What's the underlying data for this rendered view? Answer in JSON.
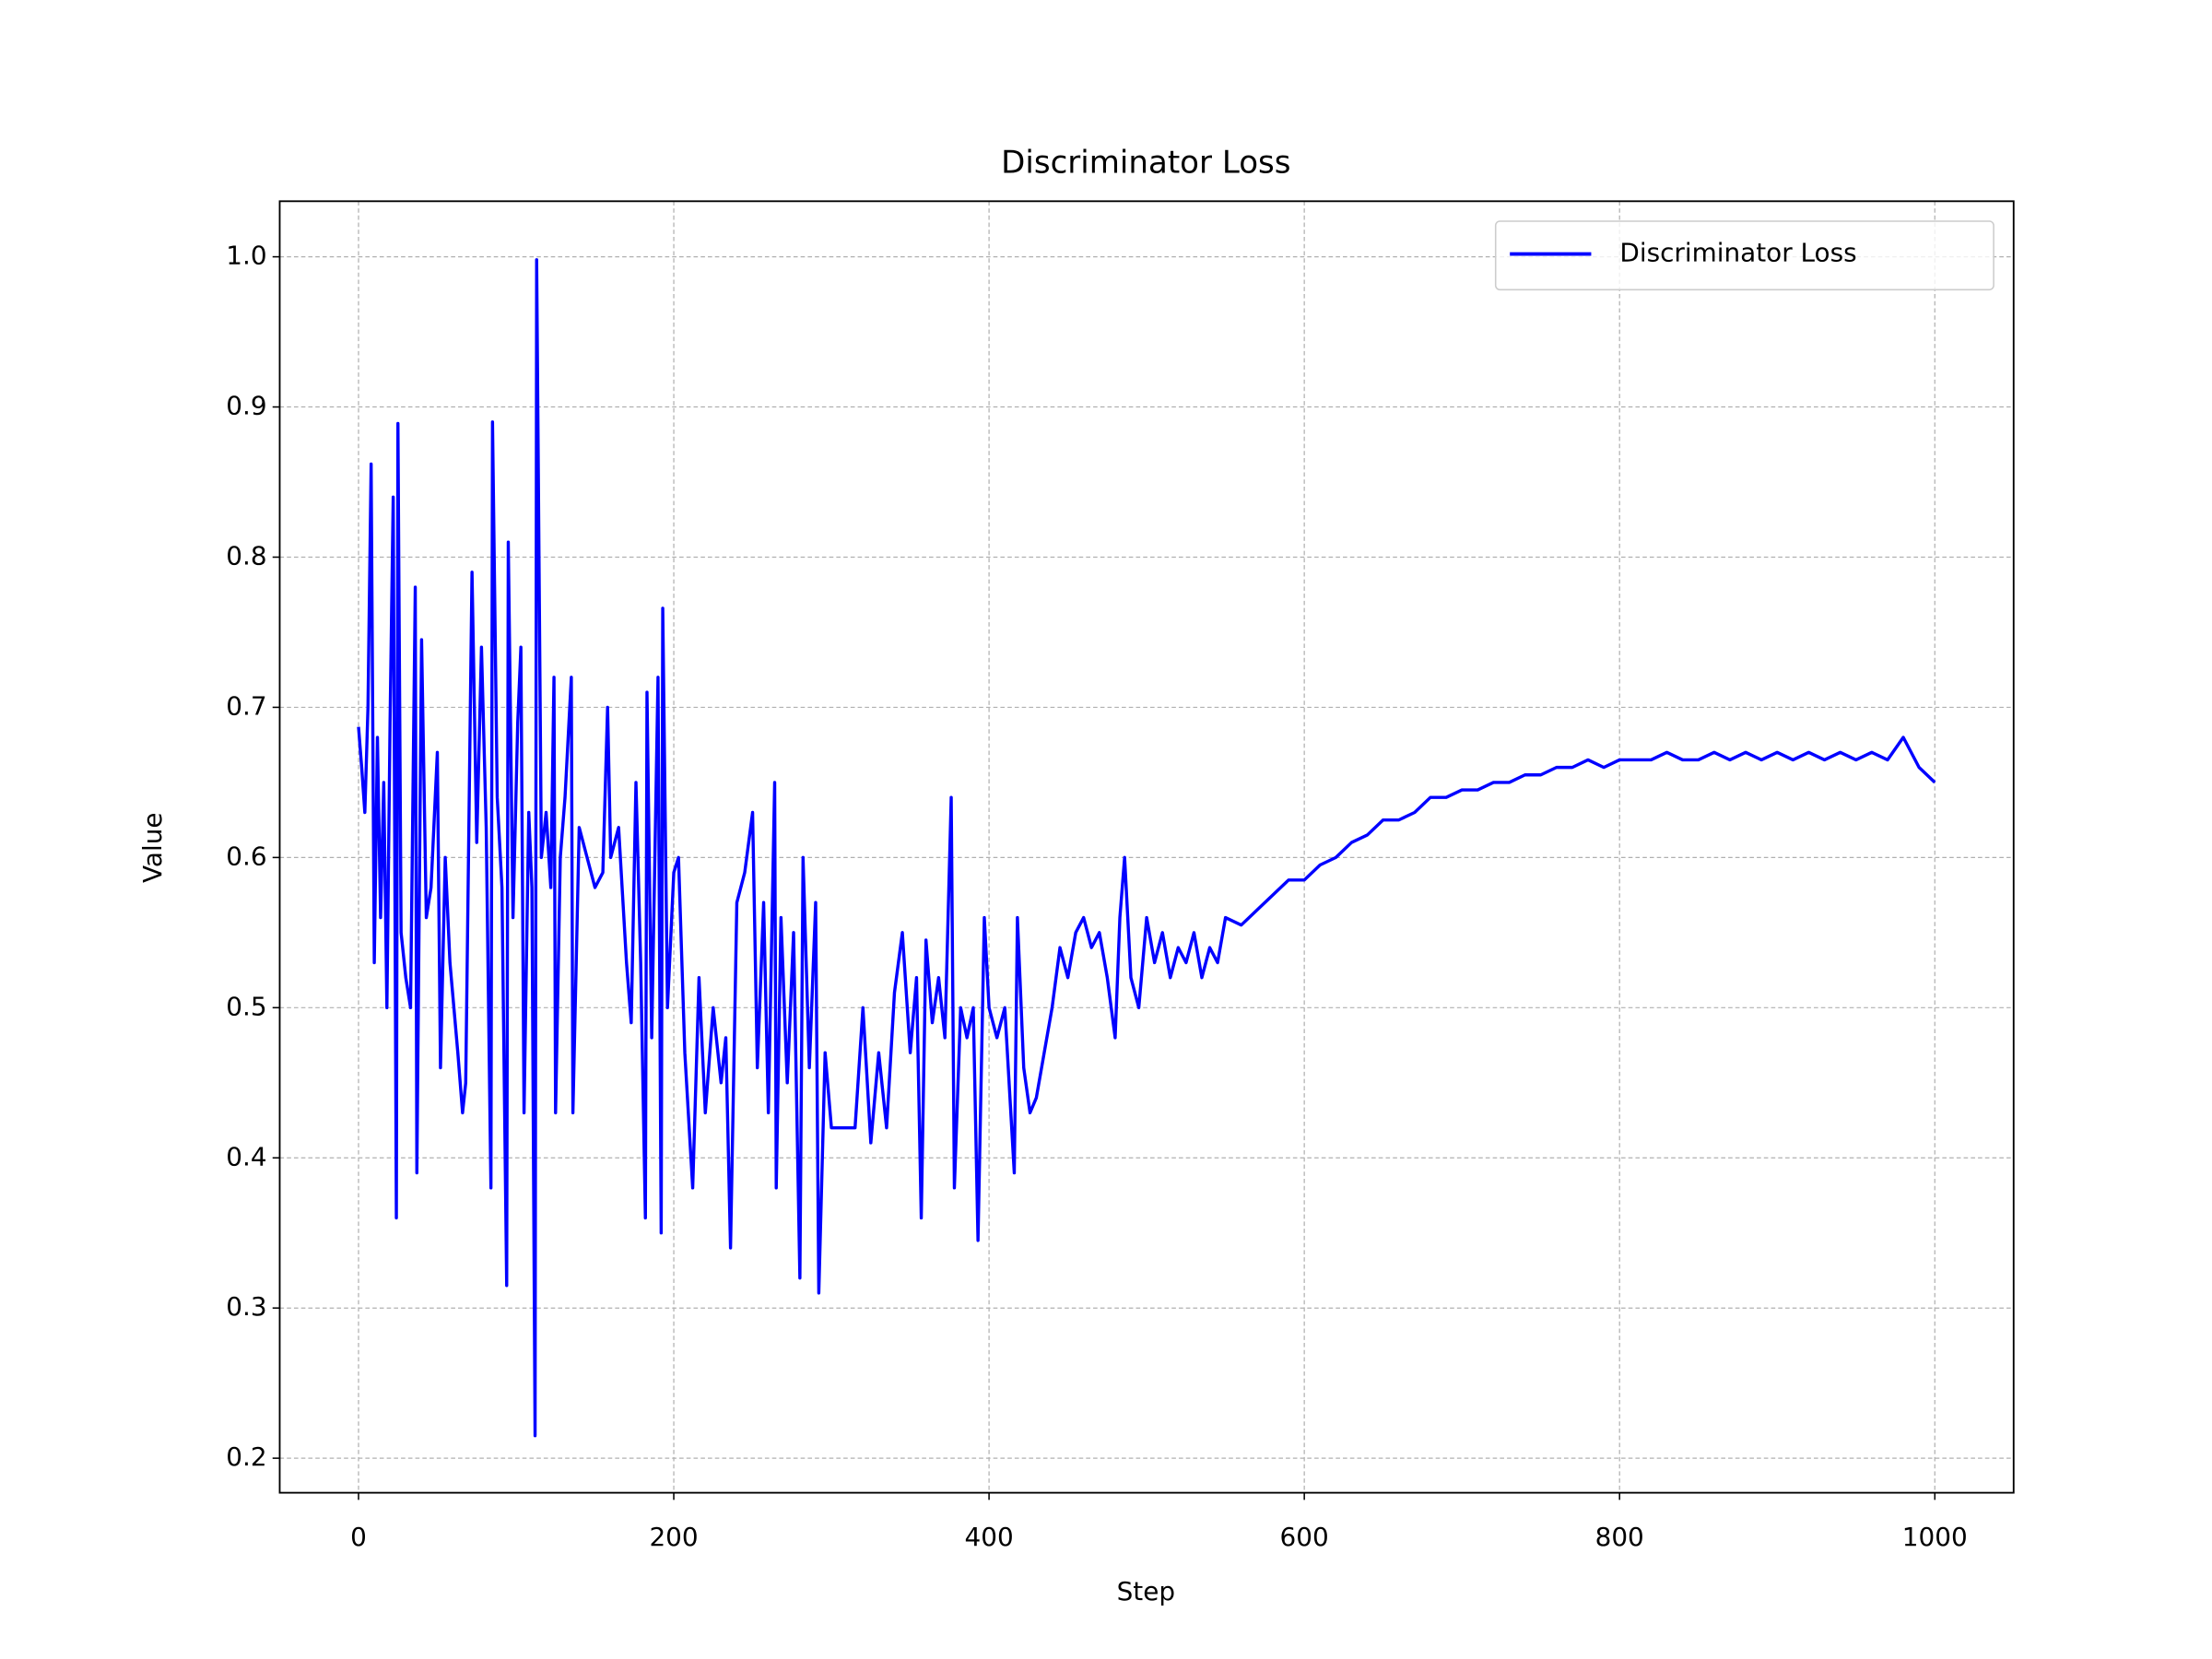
{
  "chart_data": {
    "type": "line",
    "title": "Discriminator Loss",
    "xlabel": "Step",
    "ylabel": "Value",
    "x": [
      0,
      2,
      4,
      6,
      8,
      10,
      12,
      14,
      16,
      18,
      20,
      22,
      24,
      25,
      27,
      30,
      33,
      36,
      37,
      40,
      43,
      46,
      50,
      52,
      55,
      58,
      63,
      66,
      68,
      72,
      75,
      78,
      81,
      84,
      85,
      88,
      91,
      94,
      95,
      98,
      101,
      103,
      105,
      108,
      110,
      112,
      113,
      116,
      119,
      122,
      124,
      125,
      128,
      131,
      135,
      136,
      140,
      145,
      150,
      155,
      158,
      160,
      165,
      170,
      173,
      176,
      179,
      182,
      183,
      186,
      190,
      192,
      193,
      196,
      200,
      203,
      207,
      212,
      216,
      220,
      225,
      230,
      233,
      236,
      240,
      245,
      250,
      253,
      257,
      260,
      264,
      265,
      268,
      272,
      276,
      280,
      282,
      286,
      290,
      292,
      296,
      300,
      305,
      310,
      315,
      320,
      325,
      330,
      335,
      340,
      345,
      350,
      354,
      357,
      360,
      364,
      368,
      372,
      376,
      378,
      382,
      386,
      390,
      393,
      397,
      400,
      405,
      410,
      416,
      418,
      422,
      426,
      430,
      435,
      440,
      445,
      450,
      455,
      460,
      465,
      470,
      475,
      480,
      483,
      486,
      490,
      495,
      500,
      505,
      510,
      515,
      520,
      525,
      530,
      535,
      540,
      545,
      550,
      560,
      570,
      580,
      590,
      600,
      610,
      620,
      630,
      640,
      650,
      660,
      670,
      680,
      690,
      700,
      710,
      720,
      730,
      740,
      750,
      760,
      770,
      780,
      790,
      800,
      810,
      820,
      830,
      840,
      850,
      860,
      870,
      880,
      890,
      900,
      910,
      920,
      930,
      940,
      950,
      960,
      970,
      980,
      990,
      1000
    ],
    "series": [
      {
        "name": "Discriminator Loss",
        "color": "#0000ff",
        "values": [
          0.687,
          0.66,
          0.63,
          0.7,
          0.862,
          0.53,
          0.68,
          0.56,
          0.65,
          0.5,
          0.69,
          0.84,
          0.36,
          0.889,
          0.55,
          0.52,
          0.5,
          0.78,
          0.39,
          0.745,
          0.56,
          0.58,
          0.67,
          0.46,
          0.6,
          0.53,
          0.47,
          0.43,
          0.45,
          0.79,
          0.61,
          0.74,
          0.62,
          0.38,
          0.89,
          0.64,
          0.58,
          0.315,
          0.81,
          0.56,
          0.69,
          0.74,
          0.43,
          0.63,
          0.58,
          0.215,
          0.998,
          0.6,
          0.63,
          0.58,
          0.72,
          0.43,
          0.6,
          0.64,
          0.72,
          0.43,
          0.62,
          0.6,
          0.58,
          0.59,
          0.7,
          0.6,
          0.62,
          0.53,
          0.49,
          0.65,
          0.53,
          0.36,
          0.71,
          0.48,
          0.72,
          0.35,
          0.766,
          0.5,
          0.59,
          0.6,
          0.47,
          0.38,
          0.52,
          0.43,
          0.5,
          0.45,
          0.48,
          0.34,
          0.57,
          0.59,
          0.63,
          0.46,
          0.57,
          0.43,
          0.65,
          0.38,
          0.56,
          0.45,
          0.55,
          0.32,
          0.6,
          0.46,
          0.57,
          0.31,
          0.47,
          0.42,
          0.42,
          0.42,
          0.42,
          0.5,
          0.41,
          0.47,
          0.42,
          0.51,
          0.55,
          0.47,
          0.52,
          0.36,
          0.545,
          0.49,
          0.52,
          0.48,
          0.64,
          0.38,
          0.5,
          0.48,
          0.5,
          0.345,
          0.56,
          0.5,
          0.48,
          0.5,
          0.39,
          0.56,
          0.46,
          0.43,
          0.44,
          0.47,
          0.5,
          0.54,
          0.52,
          0.55,
          0.56,
          0.54,
          0.55,
          0.52,
          0.48,
          0.56,
          0.6,
          0.52,
          0.5,
          0.56,
          0.53,
          0.55,
          0.52,
          0.54,
          0.53,
          0.55,
          0.52,
          0.54,
          0.53,
          0.56,
          0.555,
          0.565,
          0.575,
          0.585,
          0.585,
          0.595,
          0.6,
          0.61,
          0.615,
          0.625,
          0.625,
          0.63,
          0.64,
          0.64,
          0.645,
          0.645,
          0.65,
          0.65,
          0.655,
          0.655,
          0.66,
          0.66,
          0.665,
          0.66,
          0.665,
          0.665,
          0.665,
          0.67,
          0.665,
          0.665,
          0.67,
          0.665,
          0.67,
          0.665,
          0.67,
          0.665,
          0.67,
          0.665,
          0.67,
          0.665,
          0.67,
          0.665,
          0.68,
          0.66,
          0.65
        ]
      }
    ],
    "xlim": [
      -50,
      1050
    ],
    "ylim": [
      0.177,
      1.037
    ],
    "xticks": [
      0,
      200,
      400,
      600,
      800,
      1000
    ],
    "yticks": [
      0.2,
      0.3,
      0.4,
      0.5,
      0.6,
      0.7,
      0.8,
      0.9,
      {
        "value": 1,
        "label": "1.0"
      }
    ],
    "grid": true,
    "legend": "upper right"
  }
}
